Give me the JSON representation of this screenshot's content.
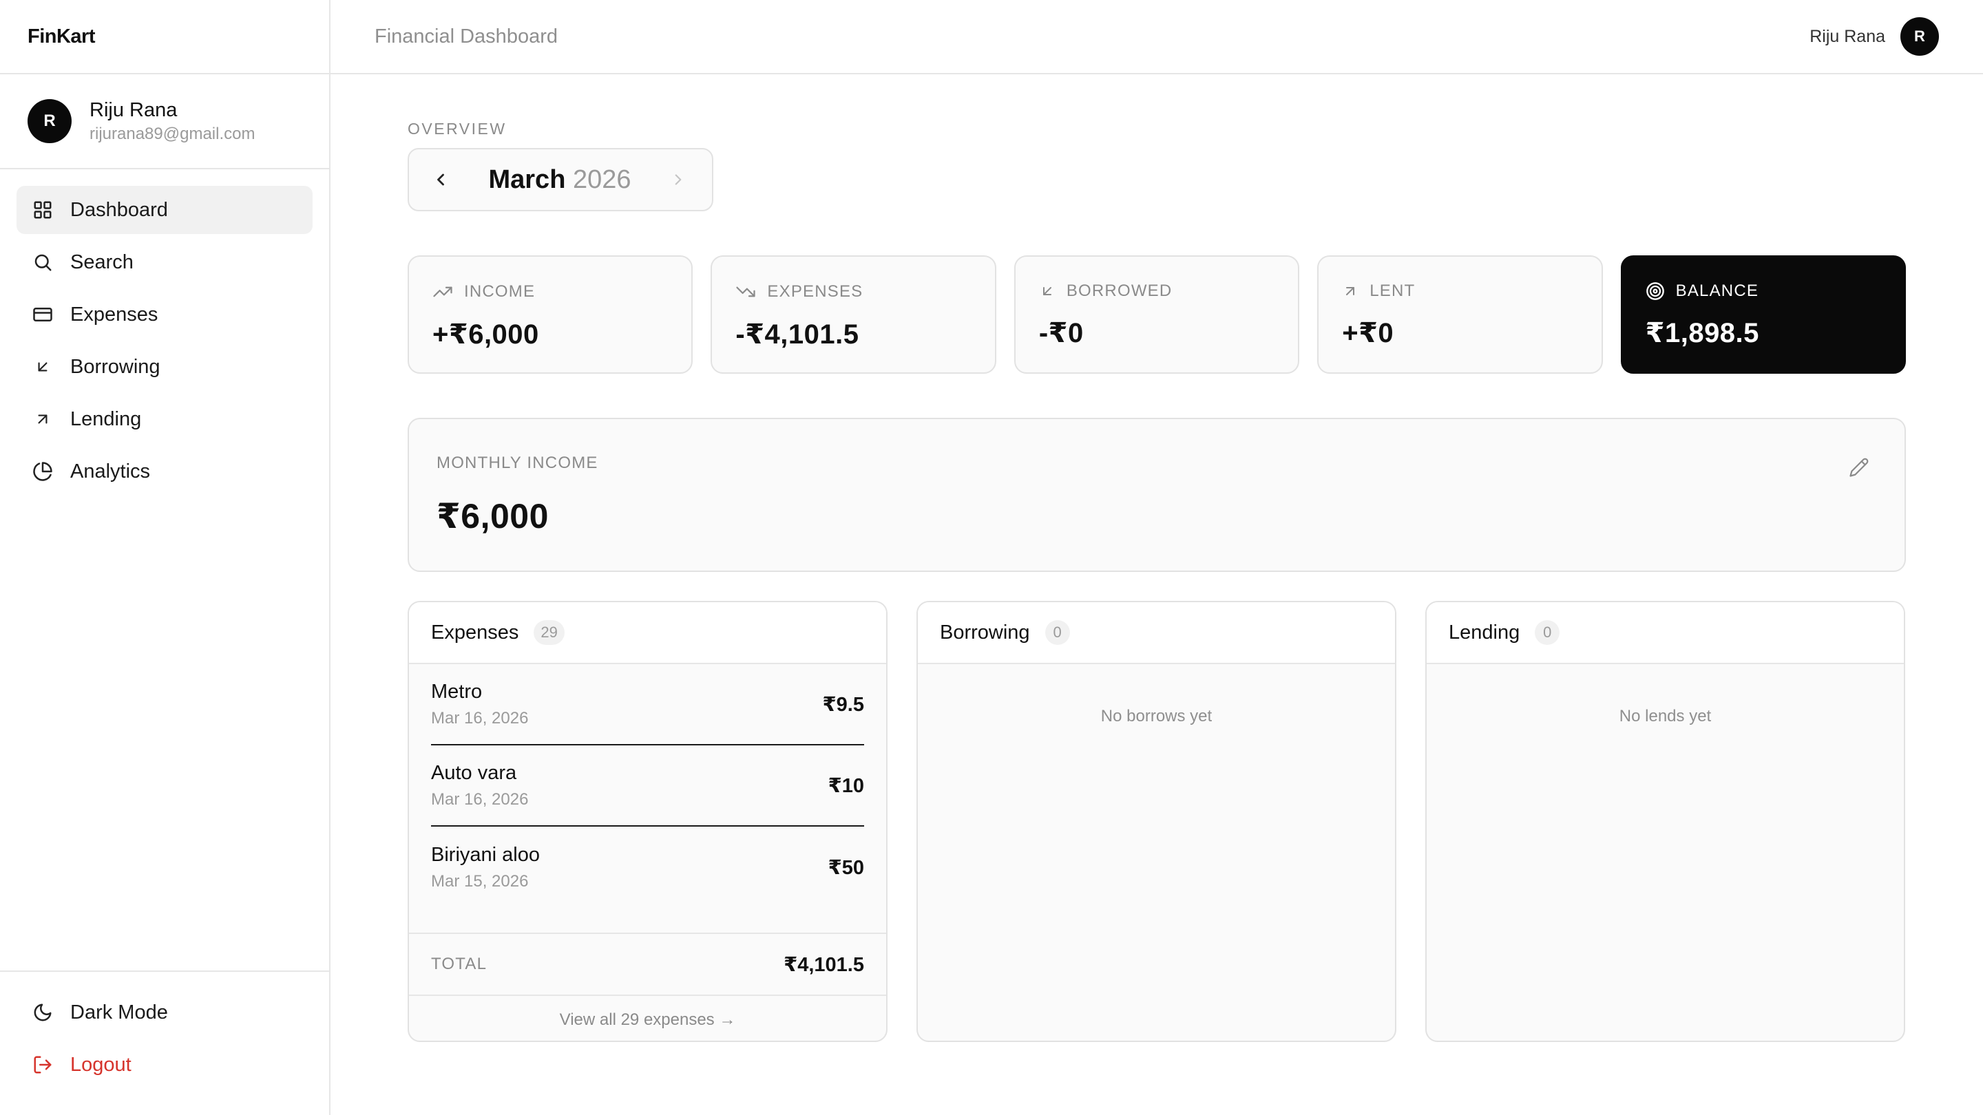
{
  "app": {
    "name": "FinKart"
  },
  "user": {
    "name": "Riju Rana",
    "email": "rijurana89@gmail.com",
    "initial": "R"
  },
  "sidebar": {
    "items": [
      {
        "label": "Dashboard",
        "icon": "grid-icon",
        "active": true
      },
      {
        "label": "Search",
        "icon": "search-icon"
      },
      {
        "label": "Expenses",
        "icon": "credit-card-icon"
      },
      {
        "label": "Borrowing",
        "icon": "arrow-down-left-icon"
      },
      {
        "label": "Lending",
        "icon": "arrow-up-right-icon"
      },
      {
        "label": "Analytics",
        "icon": "pie-chart-icon"
      }
    ],
    "bottom": [
      {
        "label": "Dark Mode",
        "icon": "moon-icon"
      },
      {
        "label": "Logout",
        "icon": "logout-icon",
        "color": "#d6342c"
      }
    ]
  },
  "header": {
    "title": "Financial Dashboard"
  },
  "overview": {
    "label": "OVERVIEW",
    "month": "March",
    "year": "2026"
  },
  "stats": {
    "income": {
      "label": "INCOME",
      "value": "+₹6,000",
      "icon": "trending-up-icon"
    },
    "expenses": {
      "label": "EXPENSES",
      "value": "-₹4,101.5",
      "icon": "trending-down-icon"
    },
    "borrowed": {
      "label": "BORROWED",
      "value": "-₹0",
      "icon": "arrow-down-left-icon"
    },
    "lent": {
      "label": "LENT",
      "value": "+₹0",
      "icon": "arrow-up-right-icon"
    },
    "balance": {
      "label": "BALANCE",
      "value": "₹1,898.5",
      "icon": "target-icon"
    }
  },
  "monthly_income": {
    "label": "MONTHLY INCOME",
    "value": "₹6,000"
  },
  "panels": {
    "expenses": {
      "title": "Expenses",
      "count": "29",
      "items": [
        {
          "name": "Metro",
          "date": "Mar 16, 2026",
          "amount": "₹9.5"
        },
        {
          "name": "Auto vara",
          "date": "Mar 16, 2026",
          "amount": "₹10"
        },
        {
          "name": "Biriyani aloo",
          "date": "Mar 15, 2026",
          "amount": "₹50"
        }
      ],
      "total_label": "TOTAL",
      "total_value": "₹4,101.5",
      "view_all": "View all 29 expenses →"
    },
    "borrowing": {
      "title": "Borrowing",
      "count": "0",
      "empty": "No borrows yet"
    },
    "lending": {
      "title": "Lending",
      "count": "0",
      "empty": "No lends yet"
    }
  },
  "colors": {
    "accent": "#0a0a0a",
    "danger": "#d6342c",
    "muted": "#8a8a8a",
    "card_bg": "#fafafa"
  }
}
